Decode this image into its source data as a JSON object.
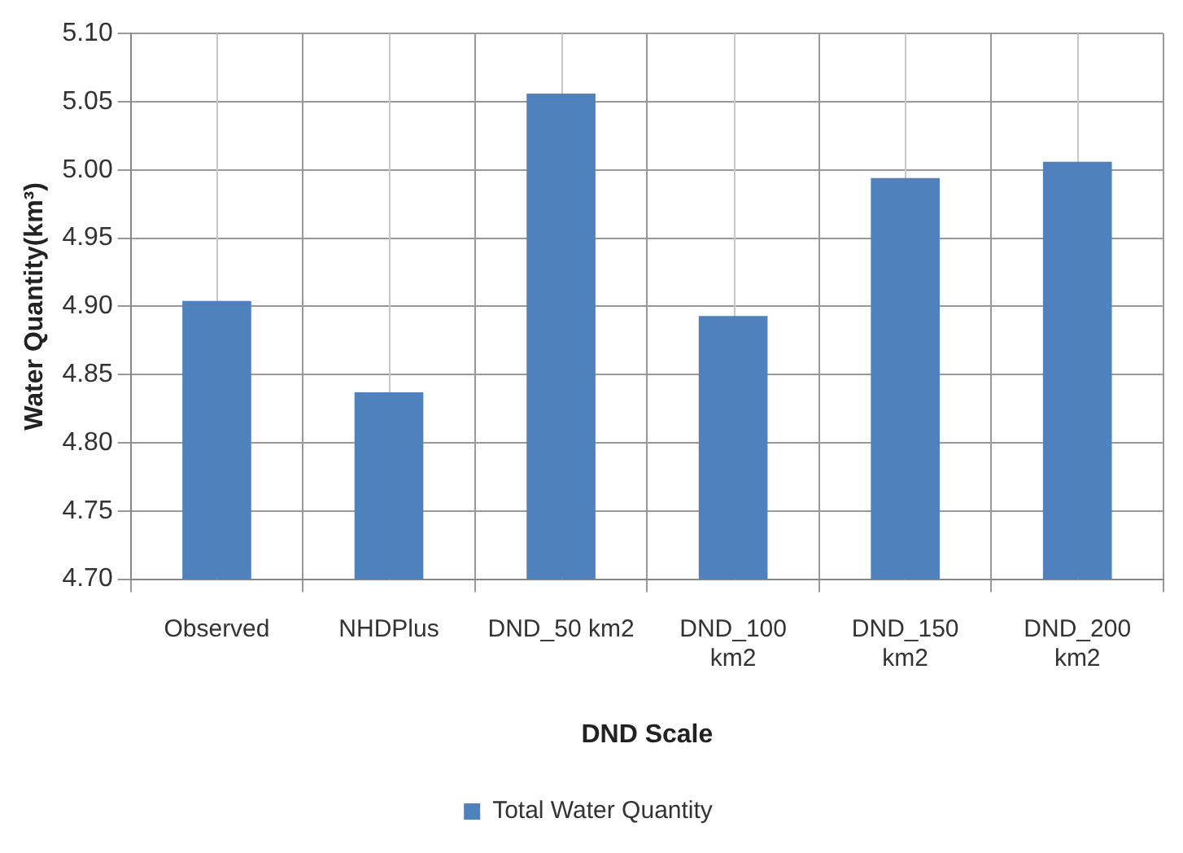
{
  "chart_data": {
    "type": "bar",
    "xlabel": "DND Scale",
    "ylabel": "Water Quantity(km³)",
    "categories": [
      "Observed",
      "NHDPlus",
      "DND_50 km2",
      "DND_100 km2",
      "DND_150 km2",
      "DND_200 km2"
    ],
    "series": [
      {
        "name": "Total Water Quantity",
        "color": "#4f81bd",
        "values": [
          4.904,
          4.837,
          5.056,
          4.893,
          4.994,
          5.006
        ]
      }
    ],
    "ylim": [
      4.7,
      5.1
    ],
    "yticks": [
      {
        "value": 4.7,
        "label": "4.70"
      },
      4.75,
      {
        "value": 4.8,
        "label": "4.80"
      },
      4.85,
      {
        "value": 4.9,
        "label": "4.90"
      },
      4.95,
      {
        "value": 5.0,
        "label": "5.00"
      },
      5.05,
      {
        "value": 5.1,
        "label": "5.10"
      }
    ],
    "grid": true,
    "legend": "bottom"
  }
}
